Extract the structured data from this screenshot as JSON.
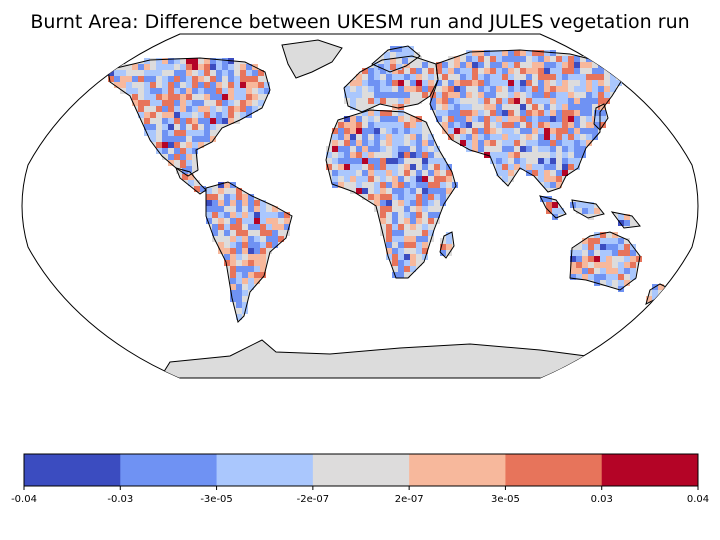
{
  "title": "Burnt Area: Difference between UKESM run and JULES vegetation run",
  "map": {
    "projection": "Robinson",
    "coastlines": true,
    "land_default_color": "#dcdcdc"
  },
  "colorbar": {
    "colors": [
      "#3b4cc0",
      "#6f92f3",
      "#aac7fd",
      "#dddcdc",
      "#f7b89c",
      "#e7745b",
      "#b40426"
    ],
    "tick_labels": [
      "-0.04",
      "-0.03",
      "-3e-05",
      "-2e-07",
      "2e-07",
      "3e-05",
      "0.03",
      "0.04"
    ]
  },
  "palette": {
    "ocean": "#ffffff",
    "coast": "#000000"
  }
}
